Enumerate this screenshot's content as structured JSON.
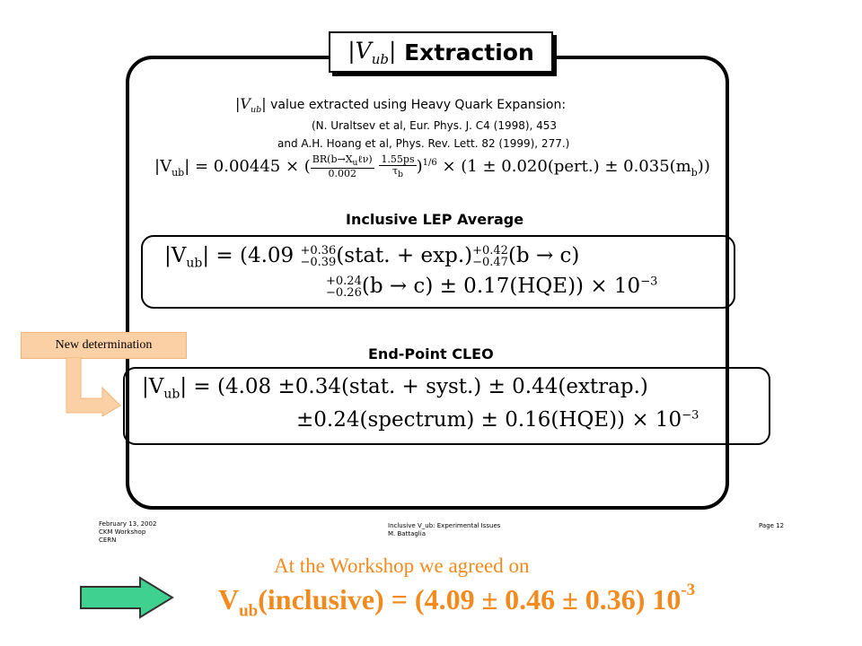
{
  "slide": {
    "title_symbol": "|V",
    "title_subscript": "ub",
    "title_symbol_close": "|",
    "title_text": "Extraction",
    "intro_line": "value extracted using Heavy Quark Expansion:",
    "ref1": "(N. Uraltsev et al, Eur. Phys. J. C4 (1998), 453",
    "ref2": "and A.H. Hoang et al, Phys. Rev. Lett. 82 (1999), 277.)",
    "hqe_formula": {
      "lhs": "|V",
      "lhs_sub": "ub",
      "lhs_close": "| = 0.00445 × (",
      "frac_num": "BR(b→X",
      "frac_num_sub": "u",
      "frac_num_close": "ℓν)",
      "frac_den": "0.002",
      "frac2_num": "1.55ps",
      "frac2_den": "τ",
      "frac2_den_sub": "b",
      "exp_text": ")",
      "exponent": "1/6",
      "rhs": "× (1 ± 0.020(pert.) ± 0.035(m",
      "rhs_sub": "b",
      "rhs_close": "))"
    },
    "lep_heading": "Inclusive LEP Average",
    "lep_formula": {
      "lhs": "|V",
      "lhs_sub": "ub",
      "lhs_close": "| = (4.09",
      "stat_up": "+0.36",
      "stat_down": "−0.39",
      "stat_label": "(stat. + exp.)",
      "bc_up": "+0.42",
      "bc_down": "−0.47",
      "bc_label": "(b → c)",
      "l2_up": "+0.24",
      "l2_down": "−0.26",
      "l2_label": "(b → c) ± 0.17(HQE)) × 10",
      "l2_exp": "−3"
    },
    "cleo_heading": "End-Point CLEO",
    "cleo_formula": {
      "lhs": "|V",
      "lhs_sub": "ub",
      "line1": "| = (4.08  ±0.34(stat. + syst.) ± 0.44(extrap.)",
      "line2": "±0.24(spectrum) ± 0.16(HQE)) × 10",
      "line2_exp": "−3"
    },
    "footer_left": "February 13, 2002\nCKM Workshop\nCERN",
    "footer_center": "Inclusive V_ub: Experimental Issues\nM. Battaglia",
    "footer_right": "Page 12"
  },
  "callout": {
    "label": "New determination"
  },
  "workshop": {
    "line": "At the Workshop we agreed on",
    "result_main": "V",
    "result_sub": "ub",
    "result_rest": "(inclusive) = (4.09 ± 0.46 ± 0.36) 10",
    "result_exp": "-3"
  },
  "colors": {
    "accent_orange": "#f28a1e",
    "callout_fill": "#fbd0a4",
    "arrow_green": "#3fd18f"
  }
}
